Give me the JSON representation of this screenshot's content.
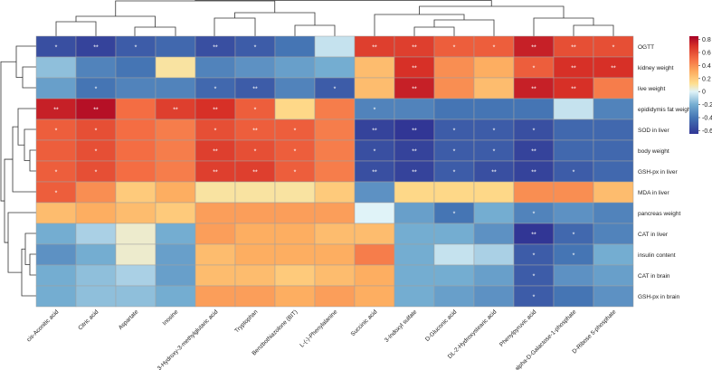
{
  "chart_data": {
    "type": "heatmap",
    "title": "",
    "xlabel": "",
    "ylabel": "",
    "columns": [
      "cis-Aconitic acid",
      "Citric acid",
      "Aspartate",
      "Inosine",
      "3-Hydroxy-3-methylglutaric acid",
      "Tryptophan",
      "Benzbothiazolone (BIT)",
      "L-(-)-Phenylalanine",
      "Succinic acid",
      "3-Indoxyl sulfate",
      "D-Gluconic acid",
      "DL-2-Hydroxystearic acid",
      "Phenylpyruvic acid",
      "alpha-D-Galactose-1-phosphate",
      "D-Ribose 5-phosphate"
    ],
    "rows": [
      "OGTT",
      "kidney weight",
      "live weight",
      "epididymis fat weight",
      "SOD in liver",
      "body weight",
      "GSH-px in liver",
      "MDA in liver",
      "pancreas weight",
      "CAT in liver",
      "insulin content",
      "CAT in brain",
      "GSH-px in brain"
    ],
    "values": [
      [
        -0.55,
        -0.6,
        -0.5,
        -0.45,
        -0.55,
        -0.5,
        -0.4,
        -0.05,
        0.65,
        0.65,
        0.55,
        0.55,
        0.75,
        0.6,
        0.6
      ],
      [
        -0.15,
        -0.35,
        -0.4,
        0.1,
        -0.35,
        -0.3,
        -0.25,
        -0.2,
        0.25,
        0.7,
        0.4,
        0.3,
        0.55,
        0.7,
        0.7
      ],
      [
        -0.25,
        -0.4,
        -0.35,
        -0.35,
        -0.45,
        -0.5,
        -0.35,
        -0.5,
        0.25,
        0.75,
        0.4,
        0.25,
        0.75,
        0.7,
        0.45
      ],
      [
        0.75,
        0.8,
        0.5,
        0.65,
        0.7,
        0.55,
        0.15,
        0.45,
        -0.35,
        -0.35,
        -0.4,
        -0.4,
        -0.4,
        -0.05,
        -0.35
      ],
      [
        0.55,
        0.6,
        0.5,
        0.45,
        0.6,
        0.55,
        0.55,
        0.45,
        -0.6,
        -0.65,
        -0.5,
        -0.5,
        -0.55,
        -0.45,
        -0.45
      ],
      [
        0.55,
        0.6,
        0.5,
        0.45,
        0.65,
        0.6,
        0.55,
        0.45,
        -0.55,
        -0.6,
        -0.5,
        -0.5,
        -0.6,
        -0.45,
        -0.45
      ],
      [
        0.55,
        0.6,
        0.5,
        0.45,
        0.65,
        0.65,
        0.55,
        0.45,
        -0.55,
        -0.6,
        -0.5,
        -0.55,
        -0.6,
        -0.5,
        -0.45
      ],
      [
        0.55,
        0.4,
        0.2,
        0.3,
        0.1,
        0.1,
        0.1,
        0.2,
        -0.3,
        0.15,
        0.15,
        0.15,
        0.4,
        0.4,
        0.25
      ],
      [
        0.25,
        0.3,
        0.25,
        0.2,
        0.35,
        0.35,
        0.35,
        0.35,
        0.0,
        -0.25,
        -0.4,
        -0.2,
        -0.35,
        -0.3,
        -0.35
      ],
      [
        -0.2,
        -0.1,
        0.05,
        -0.2,
        0.35,
        0.3,
        0.3,
        0.25,
        0.25,
        -0.2,
        -0.2,
        -0.3,
        -0.65,
        -0.45,
        -0.35
      ],
      [
        -0.3,
        -0.2,
        0.05,
        -0.25,
        0.25,
        0.3,
        0.3,
        0.3,
        0.45,
        -0.2,
        -0.05,
        -0.1,
        -0.5,
        -0.4,
        -0.2
      ],
      [
        -0.2,
        -0.15,
        -0.1,
        -0.25,
        0.25,
        0.25,
        0.2,
        0.25,
        0.3,
        -0.2,
        -0.2,
        -0.25,
        -0.5,
        -0.3,
        -0.25
      ],
      [
        -0.2,
        -0.15,
        -0.15,
        -0.2,
        0.35,
        0.35,
        0.3,
        0.35,
        0.3,
        -0.2,
        -0.25,
        -0.3,
        -0.5,
        -0.4,
        -0.3
      ]
    ],
    "significance": [
      [
        "*",
        "**",
        "*",
        "",
        "**",
        "*",
        "",
        "",
        "**",
        "**",
        "*",
        "*",
        "**",
        "**",
        "*"
      ],
      [
        "",
        "",
        "",
        "",
        "",
        "",
        "",
        "",
        "",
        "**",
        "",
        "",
        "*",
        "**",
        "**"
      ],
      [
        "",
        "*",
        "",
        "",
        "*",
        "**",
        "",
        "*",
        "",
        "**",
        "",
        "",
        "**",
        "**",
        ""
      ],
      [
        "**",
        "**",
        "",
        "**",
        "**",
        "*",
        "",
        "",
        "*",
        "",
        "",
        "",
        "",
        "",
        ""
      ],
      [
        "*",
        "*",
        "",
        "",
        "*",
        "**",
        "*",
        "",
        "**",
        "**",
        "*",
        "*",
        "*",
        "",
        ""
      ],
      [
        "",
        "*",
        "",
        "",
        "**",
        "*",
        "*",
        "",
        "*",
        "**",
        "*",
        "*",
        "**",
        "",
        ""
      ],
      [
        "*",
        "*",
        "",
        "",
        "**",
        "**",
        "*",
        "",
        "**",
        "**",
        "*",
        "**",
        "**",
        "*",
        ""
      ],
      [
        "*",
        "",
        "",
        "",
        "",
        "",
        "",
        "",
        "",
        "",
        "",
        "",
        "",
        "",
        ""
      ],
      [
        "",
        "",
        "",
        "",
        "",
        "",
        "",
        "",
        "",
        "",
        "*",
        "",
        "*",
        "",
        ""
      ],
      [
        "",
        "",
        "",
        "",
        "",
        "",
        "",
        "",
        "",
        "",
        "",
        "",
        "**",
        "*",
        ""
      ],
      [
        "",
        "",
        "",
        "",
        "",
        "",
        "",
        "",
        "",
        "",
        "",
        "",
        "*",
        "*",
        ""
      ],
      [
        "",
        "",
        "",
        "",
        "",
        "",
        "",
        "",
        "",
        "",
        "",
        "",
        "*",
        "",
        ""
      ],
      [
        "",
        "",
        "",
        "",
        "",
        "",
        "",
        "",
        "",
        "",
        "",
        "",
        "*",
        "",
        ""
      ]
    ],
    "colorscale": {
      "min": -0.65,
      "max": 0.85,
      "stops": [
        {
          "value": -0.65,
          "color": "#313695"
        },
        {
          "value": -0.4,
          "color": "#4575b4"
        },
        {
          "value": -0.2,
          "color": "#74add1"
        },
        {
          "value": 0.0,
          "color": "#e0f3f8"
        },
        {
          "value": 0.12,
          "color": "#fee090"
        },
        {
          "value": 0.3,
          "color": "#fdae61"
        },
        {
          "value": 0.5,
          "color": "#f46d43"
        },
        {
          "value": 0.7,
          "color": "#d73027"
        },
        {
          "value": 0.85,
          "color": "#a50026"
        }
      ],
      "ticks": [
        -0.6,
        -0.4,
        -0.2,
        0,
        0.2,
        0.4,
        0.6,
        0.8
      ],
      "tick_labels": [
        "-0.6",
        "-0.4",
        "-0.2",
        "0",
        "0.2",
        "0.4",
        "0.6",
        "0.8"
      ]
    },
    "legend_placement": "right",
    "dendrograms": [
      "top (columns)",
      "left (rows)"
    ]
  }
}
